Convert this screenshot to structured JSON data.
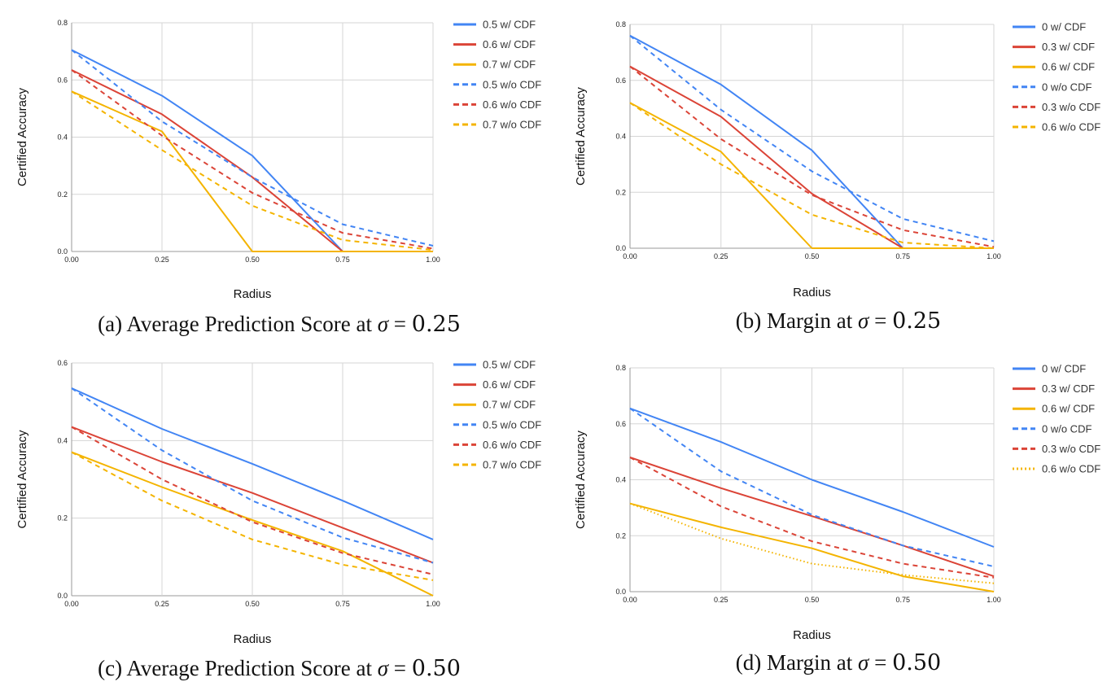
{
  "chart_data": [
    {
      "type": "line",
      "id": "a",
      "title": "(a) Average Prediction Score at σ = 0.25",
      "xlabel": "Radius",
      "ylabel": "Certified Accuracy",
      "x": [
        0,
        0.25,
        0.5,
        0.75,
        1.0
      ],
      "xticks": [
        "0.00",
        "0.25",
        "0.50",
        "0.75",
        "1.00"
      ],
      "ylim": [
        0,
        0.8
      ],
      "yticks": [
        "0.0",
        "0.2",
        "0.4",
        "0.6",
        "0.8"
      ],
      "series": [
        {
          "name": "0.5 w/ CDF",
          "color": "#4285f4",
          "style": "solid",
          "values": [
            0.705,
            0.545,
            0.335,
            0.0,
            0.0
          ]
        },
        {
          "name": "0.6 w/ CDF",
          "color": "#db4437",
          "style": "solid",
          "values": [
            0.635,
            0.48,
            0.26,
            0.0,
            0.0
          ]
        },
        {
          "name": "0.7 w/ CDF",
          "color": "#f4b400",
          "style": "solid",
          "values": [
            0.56,
            0.42,
            0.0,
            0.0,
            0.0
          ]
        },
        {
          "name": "0.5 w/o CDF",
          "color": "#4285f4",
          "style": "dashed",
          "values": [
            0.705,
            0.455,
            0.26,
            0.095,
            0.02
          ]
        },
        {
          "name": "0.6 w/o CDF",
          "color": "#db4437",
          "style": "dashed",
          "values": [
            0.635,
            0.405,
            0.205,
            0.065,
            0.01
          ]
        },
        {
          "name": "0.7 w/o CDF",
          "color": "#f4b400",
          "style": "dashed",
          "values": [
            0.56,
            0.355,
            0.16,
            0.04,
            0.005
          ]
        }
      ]
    },
    {
      "type": "line",
      "id": "b",
      "title": "(b) Margin at σ = 0.25",
      "xlabel": "Radius",
      "ylabel": "Certified Accuracy",
      "x": [
        0,
        0.25,
        0.5,
        0.75,
        1.0
      ],
      "xticks": [
        "0.00",
        "0.25",
        "0.50",
        "0.75",
        "1.00"
      ],
      "ylim": [
        0,
        0.8
      ],
      "yticks": [
        "0.0",
        "0.2",
        "0.4",
        "0.6",
        "0.8"
      ],
      "series": [
        {
          "name": "0 w/ CDF",
          "color": "#4285f4",
          "style": "solid",
          "values": [
            0.76,
            0.585,
            0.35,
            0.0,
            0.0
          ]
        },
        {
          "name": "0.3 w/ CDF",
          "color": "#db4437",
          "style": "solid",
          "values": [
            0.65,
            0.47,
            0.195,
            0.0,
            0.0
          ]
        },
        {
          "name": "0.6 w/ CDF",
          "color": "#f4b400",
          "style": "solid",
          "values": [
            0.52,
            0.345,
            0.0,
            0.0,
            0.0
          ]
        },
        {
          "name": "0 w/o CDF",
          "color": "#4285f4",
          "style": "dashed",
          "values": [
            0.76,
            0.495,
            0.275,
            0.105,
            0.025
          ]
        },
        {
          "name": "0.3 w/o CDF",
          "color": "#db4437",
          "style": "dashed",
          "values": [
            0.65,
            0.39,
            0.19,
            0.065,
            0.005
          ]
        },
        {
          "name": "0.6 w/o CDF",
          "color": "#f4b400",
          "style": "dashed",
          "values": [
            0.52,
            0.3,
            0.12,
            0.02,
            0.0
          ]
        }
      ]
    },
    {
      "type": "line",
      "id": "c",
      "title": "(c) Average Prediction Score at σ = 0.50",
      "xlabel": "Radius",
      "ylabel": "Certified Accuracy",
      "x": [
        0,
        0.25,
        0.5,
        0.75,
        1.0
      ],
      "xticks": [
        "0.00",
        "0.25",
        "0.50",
        "0.75",
        "1.00"
      ],
      "ylim": [
        0,
        0.6
      ],
      "yticks": [
        "0.0",
        "0.2",
        "0.4",
        "0.6"
      ],
      "series": [
        {
          "name": "0.5 w/ CDF",
          "color": "#4285f4",
          "style": "solid",
          "values": [
            0.535,
            0.43,
            0.34,
            0.245,
            0.145
          ]
        },
        {
          "name": "0.6 w/ CDF",
          "color": "#db4437",
          "style": "solid",
          "values": [
            0.435,
            0.345,
            0.265,
            0.175,
            0.085
          ]
        },
        {
          "name": "0.7 w/ CDF",
          "color": "#f4b400",
          "style": "solid",
          "values": [
            0.37,
            0.28,
            0.195,
            0.115,
            0.0
          ]
        },
        {
          "name": "0.5 w/o CDF",
          "color": "#4285f4",
          "style": "dashed",
          "values": [
            0.535,
            0.375,
            0.245,
            0.15,
            0.085
          ]
        },
        {
          "name": "0.6 w/o CDF",
          "color": "#db4437",
          "style": "dashed",
          "values": [
            0.435,
            0.3,
            0.19,
            0.11,
            0.055
          ]
        },
        {
          "name": "0.7 w/o CDF",
          "color": "#f4b400",
          "style": "dashed",
          "values": [
            0.37,
            0.245,
            0.145,
            0.08,
            0.04
          ]
        }
      ]
    },
    {
      "type": "line",
      "id": "d",
      "title": "(d) Margin at σ = 0.50",
      "xlabel": "Radius",
      "ylabel": "Certified Accuracy",
      "x": [
        0,
        0.25,
        0.5,
        0.75,
        1.0
      ],
      "xticks": [
        "0.00",
        "0.25",
        "0.50",
        "0.75",
        "1.00"
      ],
      "ylim": [
        0,
        0.8
      ],
      "yticks": [
        "0.0",
        "0.2",
        "0.4",
        "0.6",
        "0.8"
      ],
      "series": [
        {
          "name": "0 w/ CDF",
          "color": "#4285f4",
          "style": "solid",
          "values": [
            0.655,
            0.535,
            0.4,
            0.285,
            0.16
          ]
        },
        {
          "name": "0.3 w/ CDF",
          "color": "#db4437",
          "style": "solid",
          "values": [
            0.48,
            0.37,
            0.27,
            0.165,
            0.055
          ]
        },
        {
          "name": "0.6 w/ CDF",
          "color": "#f4b400",
          "style": "solid",
          "values": [
            0.315,
            0.23,
            0.155,
            0.055,
            0.0
          ]
        },
        {
          "name": "0 w/o CDF",
          "color": "#4285f4",
          "style": "dashed",
          "values": [
            0.655,
            0.43,
            0.275,
            0.165,
            0.09
          ]
        },
        {
          "name": "0.3 w/o CDF",
          "color": "#db4437",
          "style": "dashed",
          "values": [
            0.48,
            0.305,
            0.18,
            0.1,
            0.05
          ]
        },
        {
          "name": "0.6 w/o CDF",
          "color": "#f4b400",
          "style": "dotted",
          "values": [
            0.315,
            0.19,
            0.1,
            0.06,
            0.03
          ]
        }
      ]
    }
  ]
}
